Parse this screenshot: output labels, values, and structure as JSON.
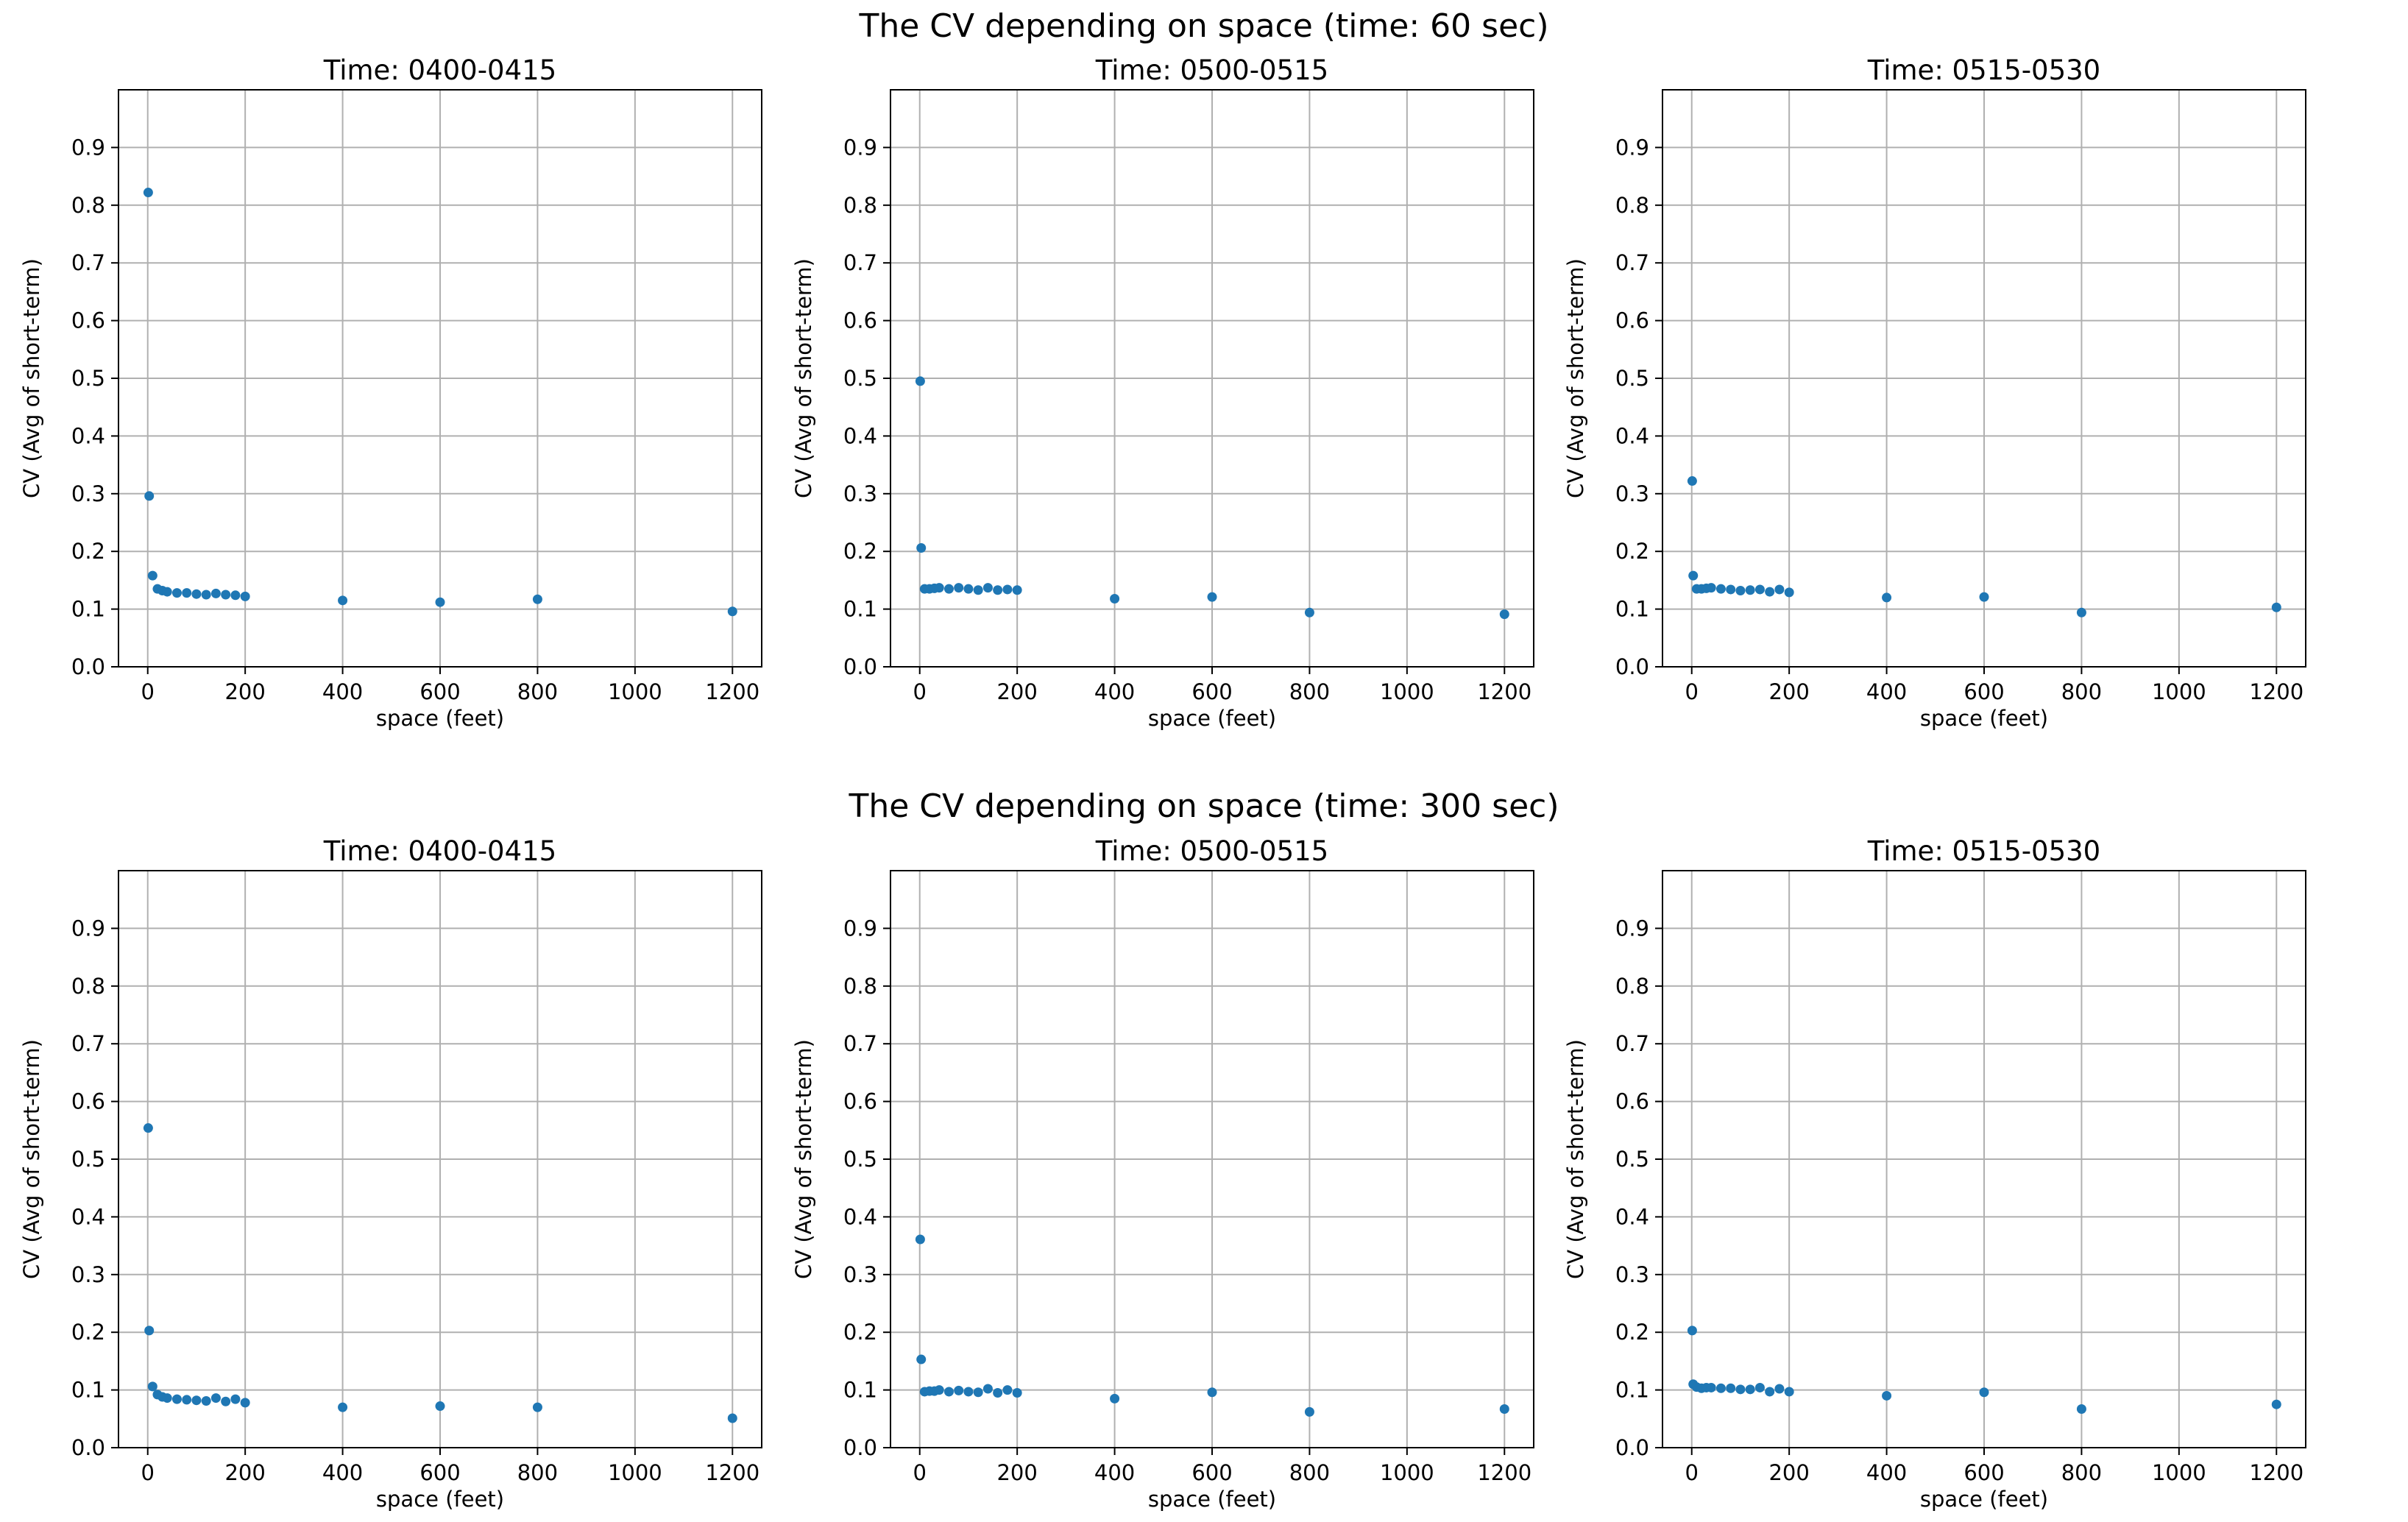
{
  "figure": {
    "row_titles": [
      "The CV depending on space (time: 60 sec)",
      "The CV depending on space (time: 300 sec)"
    ]
  },
  "colors": {
    "marker": "#1f77b4",
    "grid": "#b0b0b0"
  },
  "chart_data": [
    {
      "type": "scatter",
      "row": 0,
      "col": 0,
      "title": "Time: 0400-0415",
      "xlabel": "space (feet)",
      "ylabel": "CV (Avg of short-term)",
      "xlim": [
        -60,
        1260
      ],
      "ylim": [
        0,
        1
      ],
      "xticks": [
        0,
        200,
        400,
        600,
        800,
        1000,
        1200
      ],
      "yticks": [
        0.0,
        0.1,
        0.2,
        0.3,
        0.4,
        0.5,
        0.6,
        0.7,
        0.8,
        0.9
      ],
      "grid": true,
      "x": [
        1,
        3,
        10,
        20,
        30,
        40,
        60,
        80,
        100,
        120,
        140,
        160,
        180,
        200,
        400,
        600,
        800,
        1200
      ],
      "y": [
        0.822,
        0.296,
        0.158,
        0.135,
        0.132,
        0.13,
        0.128,
        0.128,
        0.126,
        0.125,
        0.127,
        0.125,
        0.124,
        0.122,
        0.115,
        0.112,
        0.117,
        0.096
      ]
    },
    {
      "type": "scatter",
      "row": 0,
      "col": 1,
      "title": "Time: 0500-0515",
      "xlabel": "space (feet)",
      "ylabel": "CV (Avg of short-term)",
      "xlim": [
        -60,
        1260
      ],
      "ylim": [
        0,
        1
      ],
      "xticks": [
        0,
        200,
        400,
        600,
        800,
        1000,
        1200
      ],
      "yticks": [
        0.0,
        0.1,
        0.2,
        0.3,
        0.4,
        0.5,
        0.6,
        0.7,
        0.8,
        0.9
      ],
      "grid": true,
      "x": [
        1,
        3,
        10,
        20,
        30,
        40,
        60,
        80,
        100,
        120,
        140,
        160,
        180,
        200,
        400,
        600,
        800,
        1200
      ],
      "y": [
        0.495,
        0.206,
        0.135,
        0.135,
        0.136,
        0.137,
        0.135,
        0.137,
        0.135,
        0.133,
        0.137,
        0.133,
        0.134,
        0.133,
        0.118,
        0.121,
        0.094,
        0.091
      ]
    },
    {
      "type": "scatter",
      "row": 0,
      "col": 2,
      "title": "Time: 0515-0530",
      "xlabel": "space (feet)",
      "ylabel": "CV (Avg of short-term)",
      "xlim": [
        -60,
        1260
      ],
      "ylim": [
        0,
        1
      ],
      "xticks": [
        0,
        200,
        400,
        600,
        800,
        1000,
        1200
      ],
      "yticks": [
        0.0,
        0.1,
        0.2,
        0.3,
        0.4,
        0.5,
        0.6,
        0.7,
        0.8,
        0.9
      ],
      "grid": true,
      "x": [
        1,
        3,
        10,
        20,
        30,
        40,
        60,
        80,
        100,
        120,
        140,
        160,
        180,
        200,
        400,
        600,
        800,
        1200
      ],
      "y": [
        0.322,
        0.158,
        0.135,
        0.135,
        0.136,
        0.137,
        0.135,
        0.134,
        0.132,
        0.133,
        0.134,
        0.13,
        0.134,
        0.129,
        0.12,
        0.121,
        0.094,
        0.103
      ]
    },
    {
      "type": "scatter",
      "row": 1,
      "col": 0,
      "title": "Time: 0400-0415",
      "xlabel": "space (feet)",
      "ylabel": "CV (Avg of short-term)",
      "xlim": [
        -60,
        1260
      ],
      "ylim": [
        0,
        1
      ],
      "xticks": [
        0,
        200,
        400,
        600,
        800,
        1000,
        1200
      ],
      "yticks": [
        0.0,
        0.1,
        0.2,
        0.3,
        0.4,
        0.5,
        0.6,
        0.7,
        0.8,
        0.9
      ],
      "grid": true,
      "x": [
        1,
        3,
        10,
        20,
        30,
        40,
        60,
        80,
        100,
        120,
        140,
        160,
        180,
        200,
        400,
        600,
        800,
        1200
      ],
      "y": [
        0.554,
        0.203,
        0.106,
        0.092,
        0.088,
        0.086,
        0.084,
        0.083,
        0.082,
        0.081,
        0.086,
        0.08,
        0.084,
        0.078,
        0.07,
        0.072,
        0.07,
        0.051
      ]
    },
    {
      "type": "scatter",
      "row": 1,
      "col": 1,
      "title": "Time: 0500-0515",
      "xlabel": "space (feet)",
      "ylabel": "CV (Avg of short-term)",
      "xlim": [
        -60,
        1260
      ],
      "ylim": [
        0,
        1
      ],
      "xticks": [
        0,
        200,
        400,
        600,
        800,
        1000,
        1200
      ],
      "yticks": [
        0.0,
        0.1,
        0.2,
        0.3,
        0.4,
        0.5,
        0.6,
        0.7,
        0.8,
        0.9
      ],
      "grid": true,
      "x": [
        1,
        3,
        10,
        20,
        30,
        40,
        60,
        80,
        100,
        120,
        140,
        160,
        180,
        200,
        400,
        600,
        800,
        1200
      ],
      "y": [
        0.361,
        0.153,
        0.097,
        0.098,
        0.098,
        0.1,
        0.097,
        0.099,
        0.097,
        0.096,
        0.102,
        0.095,
        0.1,
        0.095,
        0.085,
        0.096,
        0.062,
        0.067
      ]
    },
    {
      "type": "scatter",
      "row": 1,
      "col": 2,
      "title": "Time: 0515-0530",
      "xlabel": "space (feet)",
      "ylabel": "CV (Avg of short-term)",
      "xlim": [
        -60,
        1260
      ],
      "ylim": [
        0,
        1
      ],
      "xticks": [
        0,
        200,
        400,
        600,
        800,
        1000,
        1200
      ],
      "yticks": [
        0.0,
        0.1,
        0.2,
        0.3,
        0.4,
        0.5,
        0.6,
        0.7,
        0.8,
        0.9
      ],
      "grid": true,
      "x": [
        1,
        3,
        10,
        20,
        30,
        40,
        60,
        80,
        100,
        120,
        140,
        160,
        180,
        200,
        400,
        600,
        800,
        1200
      ],
      "y": [
        0.203,
        0.11,
        0.105,
        0.103,
        0.104,
        0.104,
        0.103,
        0.103,
        0.101,
        0.101,
        0.104,
        0.097,
        0.102,
        0.097,
        0.09,
        0.096,
        0.067,
        0.075
      ]
    }
  ]
}
